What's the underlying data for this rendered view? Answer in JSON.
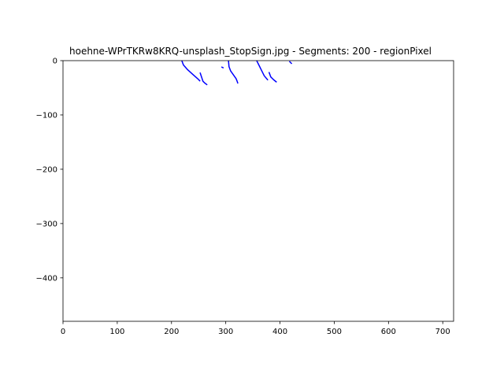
{
  "chart_data": {
    "type": "line",
    "title": "hoehne-WPrTKRw8KRQ-unsplash_StopSign.jpg - Segments: 200 - regionPixel",
    "xlabel": "",
    "ylabel": "",
    "xlim": [
      0,
      720
    ],
    "ylim": [
      -480,
      0
    ],
    "xticks": [
      0,
      100,
      200,
      300,
      400,
      500,
      600,
      700
    ],
    "yticks": [
      0,
      -100,
      -200,
      -300,
      -400
    ],
    "xtick_labels": [
      "0",
      "100",
      "200",
      "300",
      "400",
      "500",
      "600",
      "700"
    ],
    "ytick_labels": [
      "0",
      "−100",
      "−200",
      "−300",
      "−400"
    ],
    "grid": false,
    "legend": false,
    "line_color": "#0000ff",
    "series": [
      {
        "x": [
          219,
          222,
          230,
          240,
          248,
          252
        ],
        "y": [
          0,
          -8,
          -17,
          -26,
          -33,
          -37
        ]
      },
      {
        "x": [
          253,
          256,
          258,
          261,
          265
        ],
        "y": [
          -23,
          -32,
          -38,
          -41,
          -44
        ]
      },
      {
        "x": [
          293,
          295
        ],
        "y": [
          -12,
          -13
        ]
      },
      {
        "x": [
          305,
          306,
          309,
          314,
          319,
          321,
          322
        ],
        "y": [
          0,
          -11,
          -19,
          -26,
          -33,
          -38,
          -41
        ]
      },
      {
        "x": [
          357,
          361,
          366,
          371,
          377
        ],
        "y": [
          0,
          -8,
          -18,
          -28,
          -35
        ]
      },
      {
        "x": [
          380,
          383,
          388,
          393
        ],
        "y": [
          -22,
          -30,
          -35,
          -39
        ]
      },
      {
        "x": [
          418,
          421
        ],
        "y": [
          -2,
          -5
        ]
      }
    ]
  }
}
